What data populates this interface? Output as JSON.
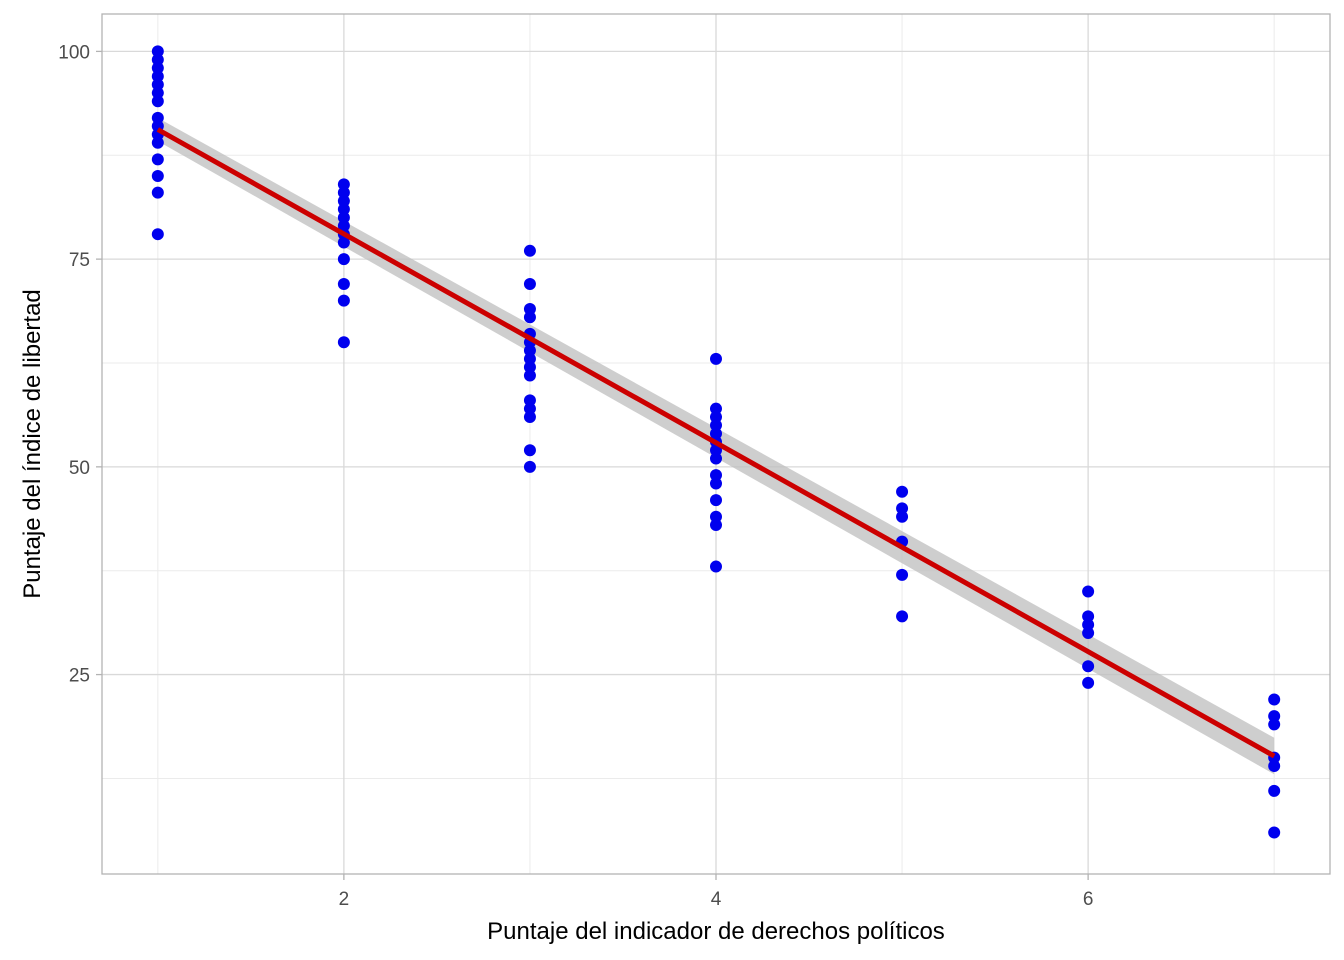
{
  "chart_data": {
    "type": "scatter",
    "title": "",
    "xlabel": "Puntaje del indicador de derechos políticos",
    "ylabel": "Puntaje del índice de libertad",
    "xlim": [
      0.7,
      7.3
    ],
    "ylim": [
      1,
      104.5
    ],
    "x_ticks": [
      2,
      4,
      6
    ],
    "y_ticks": [
      25,
      50,
      75,
      100
    ],
    "grid": true,
    "legend": "none",
    "colors": {
      "points": "#0000ee",
      "fit_line": "#cc0000",
      "confidence_band": "#bdbdbd",
      "grid_major": "#d9d9d9",
      "grid_minor": "#ebebeb",
      "panel_border": "#b3b3b3"
    },
    "points": [
      {
        "x": 1,
        "y": 100
      },
      {
        "x": 1,
        "y": 99
      },
      {
        "x": 1,
        "y": 98
      },
      {
        "x": 1,
        "y": 97
      },
      {
        "x": 1,
        "y": 96
      },
      {
        "x": 1,
        "y": 95
      },
      {
        "x": 1,
        "y": 94
      },
      {
        "x": 1,
        "y": 92
      },
      {
        "x": 1,
        "y": 91
      },
      {
        "x": 1,
        "y": 90
      },
      {
        "x": 1,
        "y": 89
      },
      {
        "x": 1,
        "y": 87
      },
      {
        "x": 1,
        "y": 85
      },
      {
        "x": 1,
        "y": 83
      },
      {
        "x": 1,
        "y": 78
      },
      {
        "x": 2,
        "y": 84
      },
      {
        "x": 2,
        "y": 83
      },
      {
        "x": 2,
        "y": 82
      },
      {
        "x": 2,
        "y": 81
      },
      {
        "x": 2,
        "y": 80
      },
      {
        "x": 2,
        "y": 79
      },
      {
        "x": 2,
        "y": 78
      },
      {
        "x": 2,
        "y": 77
      },
      {
        "x": 2,
        "y": 75
      },
      {
        "x": 2,
        "y": 72
      },
      {
        "x": 2,
        "y": 70
      },
      {
        "x": 2,
        "y": 65
      },
      {
        "x": 3,
        "y": 76
      },
      {
        "x": 3,
        "y": 72
      },
      {
        "x": 3,
        "y": 69
      },
      {
        "x": 3,
        "y": 68
      },
      {
        "x": 3,
        "y": 66
      },
      {
        "x": 3,
        "y": 65
      },
      {
        "x": 3,
        "y": 64
      },
      {
        "x": 3,
        "y": 63
      },
      {
        "x": 3,
        "y": 62
      },
      {
        "x": 3,
        "y": 61
      },
      {
        "x": 3,
        "y": 58
      },
      {
        "x": 3,
        "y": 57
      },
      {
        "x": 3,
        "y": 56
      },
      {
        "x": 3,
        "y": 52
      },
      {
        "x": 3,
        "y": 50
      },
      {
        "x": 4,
        "y": 63
      },
      {
        "x": 4,
        "y": 57
      },
      {
        "x": 4,
        "y": 56
      },
      {
        "x": 4,
        "y": 55
      },
      {
        "x": 4,
        "y": 54
      },
      {
        "x": 4,
        "y": 53
      },
      {
        "x": 4,
        "y": 52
      },
      {
        "x": 4,
        "y": 51
      },
      {
        "x": 4,
        "y": 49
      },
      {
        "x": 4,
        "y": 48
      },
      {
        "x": 4,
        "y": 46
      },
      {
        "x": 4,
        "y": 44
      },
      {
        "x": 4,
        "y": 43
      },
      {
        "x": 4,
        "y": 38
      },
      {
        "x": 5,
        "y": 47
      },
      {
        "x": 5,
        "y": 45
      },
      {
        "x": 5,
        "y": 44
      },
      {
        "x": 5,
        "y": 41
      },
      {
        "x": 5,
        "y": 37
      },
      {
        "x": 5,
        "y": 32
      },
      {
        "x": 6,
        "y": 35
      },
      {
        "x": 6,
        "y": 32
      },
      {
        "x": 6,
        "y": 31
      },
      {
        "x": 6,
        "y": 30
      },
      {
        "x": 6,
        "y": 26
      },
      {
        "x": 6,
        "y": 24
      },
      {
        "x": 7,
        "y": 22
      },
      {
        "x": 7,
        "y": 20
      },
      {
        "x": 7,
        "y": 19
      },
      {
        "x": 7,
        "y": 15
      },
      {
        "x": 7,
        "y": 14
      },
      {
        "x": 7,
        "y": 11
      },
      {
        "x": 7,
        "y": 6
      }
    ],
    "fit_line": {
      "method": "linear regression",
      "x": [
        1,
        7
      ],
      "y": [
        90.6,
        15.2
      ],
      "ci_lower": [
        89.2,
        13.0
      ],
      "ci_upper": [
        92.0,
        17.4
      ]
    }
  }
}
